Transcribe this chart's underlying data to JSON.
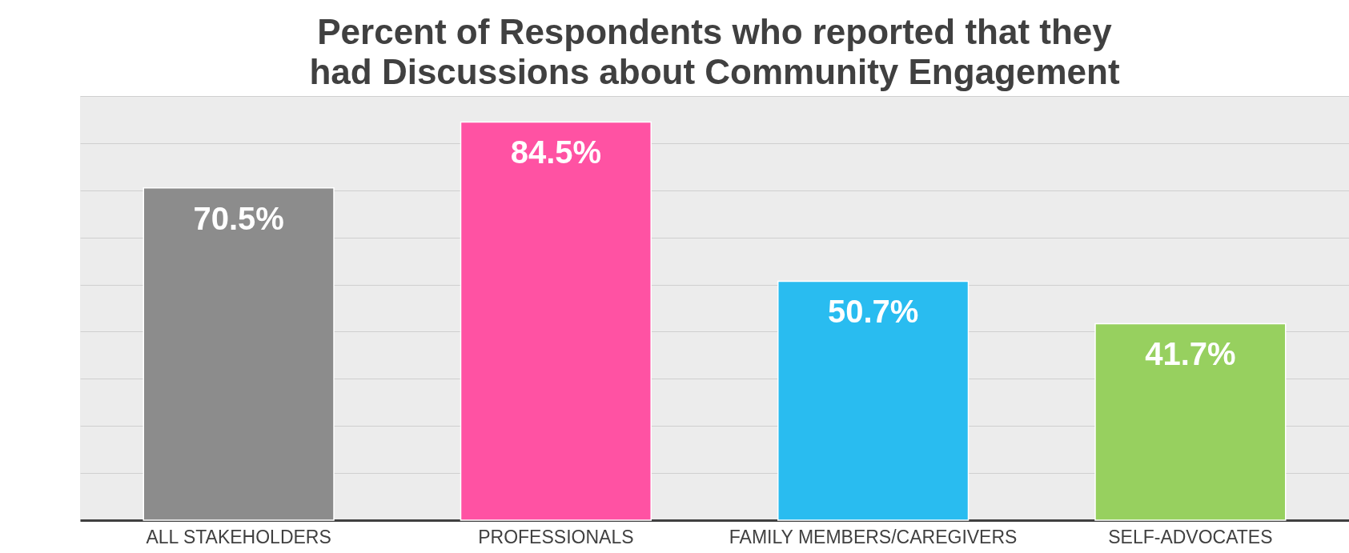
{
  "chart_data": {
    "type": "bar",
    "title": "Percent of Respondents who reported that they had Discussions about Community Engagement",
    "categories": [
      "ALL STAKEHOLDERS",
      "PROFESSIONALS",
      "FAMILY MEMBERS/CAREGIVERS",
      "SELF-ADVOCATES"
    ],
    "values": [
      70.5,
      84.5,
      50.7,
      41.7
    ],
    "colors": [
      "#8c8c8c",
      "#ff52a3",
      "#29bcf0",
      "#97d05f"
    ],
    "value_labels": [
      "70.5%",
      "84.5%",
      "50.7%",
      "41.7%"
    ],
    "ylim": [
      0,
      90
    ],
    "yticks": [
      {
        "value": 0,
        "label": null
      },
      {
        "value": 10,
        "label": null
      },
      {
        "value": 20,
        "label": null
      },
      {
        "value": 30,
        "label": null
      },
      {
        "value": 40,
        "label": null
      },
      {
        "value": 50,
        "label": null
      },
      {
        "value": 60,
        "label": null
      },
      {
        "value": 70,
        "label": null
      },
      {
        "value": 80,
        "label": null
      },
      {
        "value": 90,
        "label": null
      }
    ],
    "grid": "y",
    "tick_labels": "x",
    "legend": false
  }
}
